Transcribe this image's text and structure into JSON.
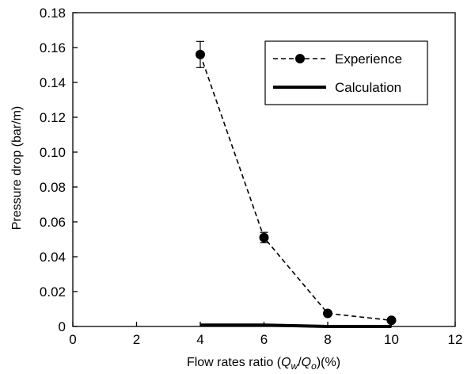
{
  "chart_data": {
    "type": "line",
    "title": "",
    "xlabel": {
      "prefix": "Flow rates ratio (",
      "q1": "Q",
      "sub1": "w",
      "slash": "/",
      "q2": "Q",
      "sub2": "o",
      "suffix": ")(%)"
    },
    "ylabel": "Pressure drop (bar/m)",
    "xlim": [
      0,
      12
    ],
    "ylim": [
      0,
      0.18
    ],
    "xticks": [
      "0",
      "2",
      "4",
      "6",
      "8",
      "10",
      "12"
    ],
    "yticks": [
      "0",
      "0.02",
      "0.04",
      "0.06",
      "0.08",
      "0.10",
      "0.12",
      "0.14",
      "0.16",
      "0.18"
    ],
    "grid": false,
    "legend_position": "top-right",
    "series": [
      {
        "name": "Experience",
        "style": "dashed-marker",
        "color": "#000000",
        "x": [
          4,
          6,
          8,
          10
        ],
        "y": [
          0.156,
          0.051,
          0.0075,
          0.0035
        ],
        "error": [
          0.0075,
          0.003,
          0.0,
          0.0
        ]
      },
      {
        "name": "Calculation",
        "style": "solid-thick",
        "color": "#000000",
        "x": [
          4,
          6,
          8,
          10
        ],
        "y": [
          0.0008,
          0.0008,
          0.0,
          0.0
        ]
      }
    ]
  }
}
